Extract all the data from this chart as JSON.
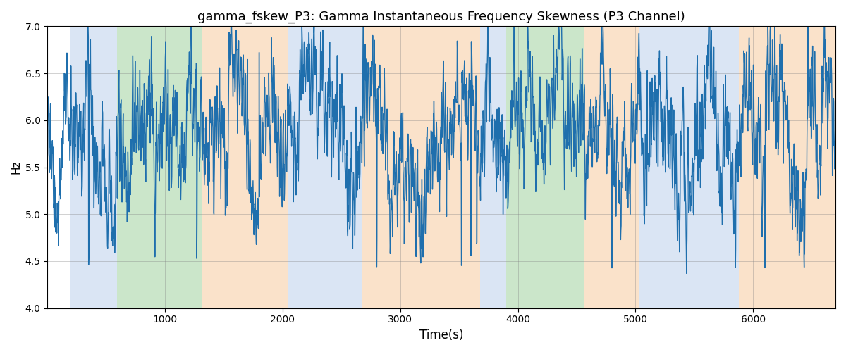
{
  "title": "gamma_fskew_P3: Gamma Instantaneous Frequency Skewness (P3 Channel)",
  "xlabel": "Time(s)",
  "ylabel": "Hz",
  "ylim": [
    4.0,
    7.0
  ],
  "xlim": [
    0,
    6700
  ],
  "line_color": "#1f6fad",
  "line_width": 1.0,
  "background_color": "#ffffff",
  "grid": true,
  "figsize": [
    12,
    5
  ],
  "dpi": 100,
  "xticks": [
    1000,
    2000,
    3000,
    4000,
    5000,
    6000
  ],
  "bg_regions": [
    {
      "xmin": 195,
      "xmax": 590,
      "color": "#aec6e8",
      "alpha": 0.45
    },
    {
      "xmin": 590,
      "xmax": 1310,
      "color": "#8dc98a",
      "alpha": 0.45
    },
    {
      "xmin": 1310,
      "xmax": 2050,
      "color": "#f5c08a",
      "alpha": 0.45
    },
    {
      "xmin": 2050,
      "xmax": 2680,
      "color": "#aec6e8",
      "alpha": 0.45
    },
    {
      "xmin": 2680,
      "xmax": 3680,
      "color": "#f5c08a",
      "alpha": 0.45
    },
    {
      "xmin": 3680,
      "xmax": 3900,
      "color": "#aec6e8",
      "alpha": 0.45
    },
    {
      "xmin": 3900,
      "xmax": 4560,
      "color": "#8dc98a",
      "alpha": 0.45
    },
    {
      "xmin": 4560,
      "xmax": 5030,
      "color": "#f5c08a",
      "alpha": 0.45
    },
    {
      "xmin": 5030,
      "xmax": 5880,
      "color": "#aec6e8",
      "alpha": 0.45
    },
    {
      "xmin": 5880,
      "xmax": 6700,
      "color": "#f5c08a",
      "alpha": 0.45
    }
  ],
  "seed": 77
}
